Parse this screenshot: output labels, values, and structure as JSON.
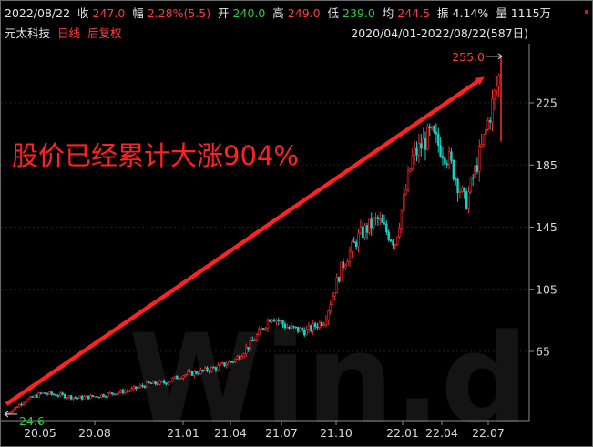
{
  "header": {
    "date": "2022/08/22",
    "close_label": "收",
    "close_value": "247.0",
    "change_label": "幅",
    "change_value": "2.28%(5.5)",
    "open_label": "开",
    "open_value": "240.0",
    "high_label": "高",
    "high_value": "249.0",
    "low_label": "低",
    "low_value": "239.0",
    "avg_label": "均",
    "avg_value": "244.5",
    "amp_label": "振",
    "amp_value": "4.14%",
    "vol_label": "量",
    "vol_value": "1115万"
  },
  "subheader": {
    "stock_name": "元太科技",
    "period": "日线",
    "adjust": "后复权",
    "date_range": "2020/04/01-2022/08/22(587日)"
  },
  "annotation": {
    "text": "股价已经累计大涨904%"
  },
  "watermark": "Win.d",
  "colors": {
    "up": "#ff2a2a",
    "down": "#17d1c6",
    "arrow": "#ff2222",
    "text_red": "#ff3b3b",
    "text_green": "#2ecc40"
  },
  "chart_data": {
    "type": "candlestick",
    "x_ticks": [
      "20.05",
      "20.08",
      "21.01",
      "21.04",
      "21.07",
      "21.10",
      "22.01",
      "22.04",
      "22.07"
    ],
    "y_ticks": [
      65,
      105,
      145,
      185,
      225
    ],
    "ylim": [
      20,
      265
    ],
    "start_label": "24.6",
    "end_label": "255.0",
    "min_price": 24.6,
    "max_price": 255.0,
    "series": [
      {
        "t": "2020-04",
        "price": 24.6
      },
      {
        "t": "2020-05",
        "price": 33
      },
      {
        "t": "2020-06",
        "price": 38
      },
      {
        "t": "2020-07",
        "price": 37
      },
      {
        "t": "2020-08",
        "price": 35
      },
      {
        "t": "2020-09",
        "price": 36
      },
      {
        "t": "2020-10",
        "price": 38
      },
      {
        "t": "2020-11",
        "price": 40
      },
      {
        "t": "2020-12",
        "price": 44
      },
      {
        "t": "2021-01",
        "price": 45
      },
      {
        "t": "2021-02",
        "price": 50
      },
      {
        "t": "2021-03",
        "price": 52
      },
      {
        "t": "2021-04",
        "price": 55
      },
      {
        "t": "2021-05",
        "price": 60
      },
      {
        "t": "2021-06",
        "price": 72
      },
      {
        "t": "2021-07",
        "price": 88
      },
      {
        "t": "2021-08",
        "price": 80
      },
      {
        "t": "2021-09",
        "price": 78
      },
      {
        "t": "2021-10",
        "price": 85
      },
      {
        "t": "2021-11",
        "price": 120
      },
      {
        "t": "2021-12",
        "price": 140
      },
      {
        "t": "2022-01",
        "price": 150
      },
      {
        "t": "2022-02",
        "price": 135
      },
      {
        "t": "2022-03",
        "price": 190
      },
      {
        "t": "2022-04",
        "price": 205
      },
      {
        "t": "2022-05",
        "price": 190
      },
      {
        "t": "2022-06",
        "price": 160
      },
      {
        "t": "2022-07",
        "price": 200
      },
      {
        "t": "2022-08",
        "price": 247
      }
    ]
  }
}
